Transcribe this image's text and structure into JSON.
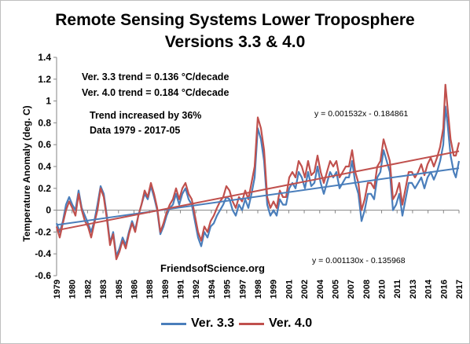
{
  "chart_data": {
    "type": "line",
    "title_line1": "Remote Sensing Systems Lower Troposphere",
    "title_line2": "Versions 3.3 & 4.0",
    "ylabel": "Temperature Anomaly (deg. C)",
    "xlabel": "",
    "ylim": [
      -0.6,
      1.4
    ],
    "y_ticks": [
      -0.6,
      -0.4,
      -0.2,
      0,
      0.2,
      0.4,
      0.6,
      0.8,
      1,
      1.2,
      1.4
    ],
    "y_tick_labels": [
      "-0.6",
      "-0.4",
      "-0.2",
      "0",
      "0.2",
      "0.4",
      "0.6",
      "0.8",
      "1",
      "1.2",
      "1.4"
    ],
    "x_tick_labels": [
      "1979",
      "1980",
      "1982",
      "1983",
      "1985",
      "1986",
      "1988",
      "1989",
      "1991",
      "1992",
      "1994",
      "1995",
      "1997",
      "1998",
      "1999",
      "2001",
      "2002",
      "2004",
      "2005",
      "2007",
      "2008",
      "2010",
      "2011",
      "2013",
      "2014",
      "2016",
      "2017"
    ],
    "x_range_years": [
      1979.0,
      2017.4
    ],
    "grid": false,
    "legend_position": "bottom",
    "annotations": {
      "trend_v33": "Ver. 3.3 trend = 0.136 °C/decade",
      "trend_v40": "Ver. 4.0 trend = 0.184 °C/decade",
      "trend_increase": "Trend increased by 36%",
      "data_range": "Data 1979 - 2017-05",
      "eq_v40": "y = 0.001532x - 0.184861",
      "eq_v33": "y = 0.001130x - 0.135968",
      "source": "FriendsofScience.org"
    },
    "series": [
      {
        "name": "Ver. 3.3",
        "color": "#4a7ebb",
        "trend": {
          "start": -0.135,
          "end": 0.385
        },
        "points": [
          [
            1979.0,
            -0.12
          ],
          [
            1979.3,
            -0.2
          ],
          [
            1979.6,
            -0.1
          ],
          [
            1979.9,
            0.05
          ],
          [
            1980.2,
            0.12
          ],
          [
            1980.5,
            0.05
          ],
          [
            1980.8,
            0.0
          ],
          [
            1981.1,
            0.18
          ],
          [
            1981.4,
            0.02
          ],
          [
            1981.7,
            -0.05
          ],
          [
            1982.0,
            -0.12
          ],
          [
            1982.3,
            -0.2
          ],
          [
            1982.6,
            -0.1
          ],
          [
            1982.9,
            0.05
          ],
          [
            1983.2,
            0.22
          ],
          [
            1983.5,
            0.15
          ],
          [
            1983.8,
            -0.05
          ],
          [
            1984.1,
            -0.3
          ],
          [
            1984.4,
            -0.2
          ],
          [
            1984.7,
            -0.42
          ],
          [
            1985.0,
            -0.35
          ],
          [
            1985.3,
            -0.25
          ],
          [
            1985.6,
            -0.32
          ],
          [
            1985.9,
            -0.2
          ],
          [
            1986.2,
            -0.1
          ],
          [
            1986.5,
            -0.18
          ],
          [
            1986.8,
            -0.05
          ],
          [
            1987.1,
            0.05
          ],
          [
            1987.4,
            0.15
          ],
          [
            1987.7,
            0.1
          ],
          [
            1988.0,
            0.22
          ],
          [
            1988.3,
            0.12
          ],
          [
            1988.6,
            0.0
          ],
          [
            1988.9,
            -0.22
          ],
          [
            1989.2,
            -0.15
          ],
          [
            1989.5,
            -0.05
          ],
          [
            1989.8,
            0.02
          ],
          [
            1990.1,
            0.05
          ],
          [
            1990.4,
            0.15
          ],
          [
            1990.7,
            0.05
          ],
          [
            1991.0,
            0.15
          ],
          [
            1991.3,
            0.2
          ],
          [
            1991.6,
            0.1
          ],
          [
            1991.9,
            0.05
          ],
          [
            1992.2,
            -0.1
          ],
          [
            1992.5,
            -0.25
          ],
          [
            1992.8,
            -0.33
          ],
          [
            1993.1,
            -0.2
          ],
          [
            1993.4,
            -0.25
          ],
          [
            1993.7,
            -0.15
          ],
          [
            1994.0,
            -0.12
          ],
          [
            1994.3,
            -0.05
          ],
          [
            1994.6,
            0.0
          ],
          [
            1994.9,
            0.05
          ],
          [
            1995.2,
            0.12
          ],
          [
            1995.5,
            0.1
          ],
          [
            1995.8,
            0.0
          ],
          [
            1996.1,
            -0.05
          ],
          [
            1996.4,
            0.05
          ],
          [
            1996.7,
            0.0
          ],
          [
            1997.0,
            0.1
          ],
          [
            1997.3,
            0.02
          ],
          [
            1997.6,
            0.15
          ],
          [
            1997.9,
            0.3
          ],
          [
            1998.2,
            0.75
          ],
          [
            1998.5,
            0.65
          ],
          [
            1998.8,
            0.45
          ],
          [
            1999.1,
            0.05
          ],
          [
            1999.4,
            -0.05
          ],
          [
            1999.7,
            0.0
          ],
          [
            2000.0,
            -0.05
          ],
          [
            2000.3,
            0.1
          ],
          [
            2000.6,
            0.05
          ],
          [
            2000.9,
            0.05
          ],
          [
            2001.2,
            0.2
          ],
          [
            2001.5,
            0.25
          ],
          [
            2001.8,
            0.2
          ],
          [
            2002.1,
            0.35
          ],
          [
            2002.4,
            0.3
          ],
          [
            2002.7,
            0.2
          ],
          [
            2003.0,
            0.35
          ],
          [
            2003.3,
            0.22
          ],
          [
            2003.6,
            0.25
          ],
          [
            2003.9,
            0.4
          ],
          [
            2004.2,
            0.25
          ],
          [
            2004.5,
            0.15
          ],
          [
            2004.8,
            0.25
          ],
          [
            2005.1,
            0.35
          ],
          [
            2005.4,
            0.3
          ],
          [
            2005.7,
            0.35
          ],
          [
            2006.0,
            0.2
          ],
          [
            2006.3,
            0.25
          ],
          [
            2006.6,
            0.3
          ],
          [
            2006.9,
            0.3
          ],
          [
            2007.2,
            0.45
          ],
          [
            2007.5,
            0.25
          ],
          [
            2007.8,
            0.15
          ],
          [
            2008.1,
            -0.1
          ],
          [
            2008.4,
            0.0
          ],
          [
            2008.7,
            0.15
          ],
          [
            2009.0,
            0.15
          ],
          [
            2009.3,
            0.1
          ],
          [
            2009.6,
            0.3
          ],
          [
            2009.9,
            0.35
          ],
          [
            2010.2,
            0.55
          ],
          [
            2010.5,
            0.45
          ],
          [
            2010.8,
            0.35
          ],
          [
            2011.1,
            0.0
          ],
          [
            2011.4,
            0.05
          ],
          [
            2011.7,
            0.15
          ],
          [
            2012.0,
            -0.05
          ],
          [
            2012.3,
            0.1
          ],
          [
            2012.6,
            0.25
          ],
          [
            2012.9,
            0.25
          ],
          [
            2013.2,
            0.2
          ],
          [
            2013.5,
            0.25
          ],
          [
            2013.8,
            0.3
          ],
          [
            2014.1,
            0.2
          ],
          [
            2014.4,
            0.3
          ],
          [
            2014.7,
            0.35
          ],
          [
            2015.0,
            0.28
          ],
          [
            2015.3,
            0.35
          ],
          [
            2015.6,
            0.45
          ],
          [
            2015.9,
            0.6
          ],
          [
            2016.1,
            0.95
          ],
          [
            2016.3,
            0.8
          ],
          [
            2016.6,
            0.5
          ],
          [
            2016.9,
            0.35
          ],
          [
            2017.1,
            0.3
          ],
          [
            2017.4,
            0.45
          ]
        ]
      },
      {
        "name": "Ver. 4.0",
        "color": "#c0504d",
        "trend": {
          "start": -0.185,
          "end": 0.54
        },
        "points": [
          [
            1979.0,
            -0.15
          ],
          [
            1979.3,
            -0.25
          ],
          [
            1979.6,
            -0.12
          ],
          [
            1979.9,
            0.0
          ],
          [
            1980.2,
            0.08
          ],
          [
            1980.5,
            0.02
          ],
          [
            1980.8,
            -0.05
          ],
          [
            1981.1,
            0.15
          ],
          [
            1981.4,
            0.0
          ],
          [
            1981.7,
            -0.1
          ],
          [
            1982.0,
            -0.15
          ],
          [
            1982.3,
            -0.25
          ],
          [
            1982.6,
            -0.12
          ],
          [
            1982.9,
            0.0
          ],
          [
            1983.2,
            0.2
          ],
          [
            1983.5,
            0.12
          ],
          [
            1983.8,
            -0.08
          ],
          [
            1984.1,
            -0.32
          ],
          [
            1984.4,
            -0.22
          ],
          [
            1984.7,
            -0.45
          ],
          [
            1985.0,
            -0.38
          ],
          [
            1985.3,
            -0.28
          ],
          [
            1985.6,
            -0.35
          ],
          [
            1985.9,
            -0.22
          ],
          [
            1986.2,
            -0.12
          ],
          [
            1986.5,
            -0.2
          ],
          [
            1986.8,
            -0.05
          ],
          [
            1987.1,
            0.05
          ],
          [
            1987.4,
            0.18
          ],
          [
            1987.7,
            0.12
          ],
          [
            1988.0,
            0.25
          ],
          [
            1988.3,
            0.15
          ],
          [
            1988.6,
            0.02
          ],
          [
            1988.9,
            -0.2
          ],
          [
            1989.2,
            -0.12
          ],
          [
            1989.5,
            -0.02
          ],
          [
            1989.8,
            0.05
          ],
          [
            1990.1,
            0.1
          ],
          [
            1990.4,
            0.2
          ],
          [
            1990.7,
            0.1
          ],
          [
            1991.0,
            0.2
          ],
          [
            1991.3,
            0.25
          ],
          [
            1991.6,
            0.15
          ],
          [
            1991.9,
            0.1
          ],
          [
            1992.2,
            -0.05
          ],
          [
            1992.5,
            -0.2
          ],
          [
            1992.8,
            -0.28
          ],
          [
            1993.1,
            -0.15
          ],
          [
            1993.4,
            -0.2
          ],
          [
            1993.7,
            -0.1
          ],
          [
            1994.0,
            -0.05
          ],
          [
            1994.3,
            0.02
          ],
          [
            1994.6,
            0.08
          ],
          [
            1994.9,
            0.12
          ],
          [
            1995.2,
            0.22
          ],
          [
            1995.5,
            0.18
          ],
          [
            1995.8,
            0.08
          ],
          [
            1996.1,
            0.02
          ],
          [
            1996.4,
            0.12
          ],
          [
            1996.7,
            0.08
          ],
          [
            1997.0,
            0.18
          ],
          [
            1997.3,
            0.1
          ],
          [
            1997.6,
            0.25
          ],
          [
            1997.9,
            0.4
          ],
          [
            1998.2,
            0.85
          ],
          [
            1998.5,
            0.75
          ],
          [
            1998.8,
            0.55
          ],
          [
            1999.1,
            0.12
          ],
          [
            1999.4,
            0.02
          ],
          [
            1999.7,
            0.08
          ],
          [
            2000.0,
            0.02
          ],
          [
            2000.3,
            0.18
          ],
          [
            2000.6,
            0.12
          ],
          [
            2000.9,
            0.12
          ],
          [
            2001.2,
            0.3
          ],
          [
            2001.5,
            0.35
          ],
          [
            2001.8,
            0.3
          ],
          [
            2002.1,
            0.45
          ],
          [
            2002.4,
            0.4
          ],
          [
            2002.7,
            0.3
          ],
          [
            2003.0,
            0.45
          ],
          [
            2003.3,
            0.32
          ],
          [
            2003.6,
            0.35
          ],
          [
            2003.9,
            0.5
          ],
          [
            2004.2,
            0.35
          ],
          [
            2004.5,
            0.25
          ],
          [
            2004.8,
            0.35
          ],
          [
            2005.1,
            0.45
          ],
          [
            2005.4,
            0.4
          ],
          [
            2005.7,
            0.45
          ],
          [
            2006.0,
            0.3
          ],
          [
            2006.3,
            0.35
          ],
          [
            2006.6,
            0.4
          ],
          [
            2006.9,
            0.4
          ],
          [
            2007.2,
            0.55
          ],
          [
            2007.5,
            0.35
          ],
          [
            2007.8,
            0.25
          ],
          [
            2008.1,
            0.0
          ],
          [
            2008.4,
            0.1
          ],
          [
            2008.7,
            0.25
          ],
          [
            2009.0,
            0.25
          ],
          [
            2009.3,
            0.2
          ],
          [
            2009.6,
            0.4
          ],
          [
            2009.9,
            0.45
          ],
          [
            2010.2,
            0.65
          ],
          [
            2010.5,
            0.55
          ],
          [
            2010.8,
            0.45
          ],
          [
            2011.1,
            0.1
          ],
          [
            2011.4,
            0.15
          ],
          [
            2011.7,
            0.25
          ],
          [
            2012.0,
            0.05
          ],
          [
            2012.3,
            0.2
          ],
          [
            2012.6,
            0.35
          ],
          [
            2012.9,
            0.35
          ],
          [
            2013.2,
            0.3
          ],
          [
            2013.5,
            0.35
          ],
          [
            2013.8,
            0.42
          ],
          [
            2014.1,
            0.32
          ],
          [
            2014.4,
            0.42
          ],
          [
            2014.7,
            0.48
          ],
          [
            2015.0,
            0.4
          ],
          [
            2015.3,
            0.48
          ],
          [
            2015.6,
            0.58
          ],
          [
            2015.9,
            0.75
          ],
          [
            2016.1,
            1.15
          ],
          [
            2016.3,
            0.95
          ],
          [
            2016.6,
            0.65
          ],
          [
            2016.9,
            0.5
          ],
          [
            2017.1,
            0.5
          ],
          [
            2017.4,
            0.62
          ]
        ]
      }
    ]
  }
}
